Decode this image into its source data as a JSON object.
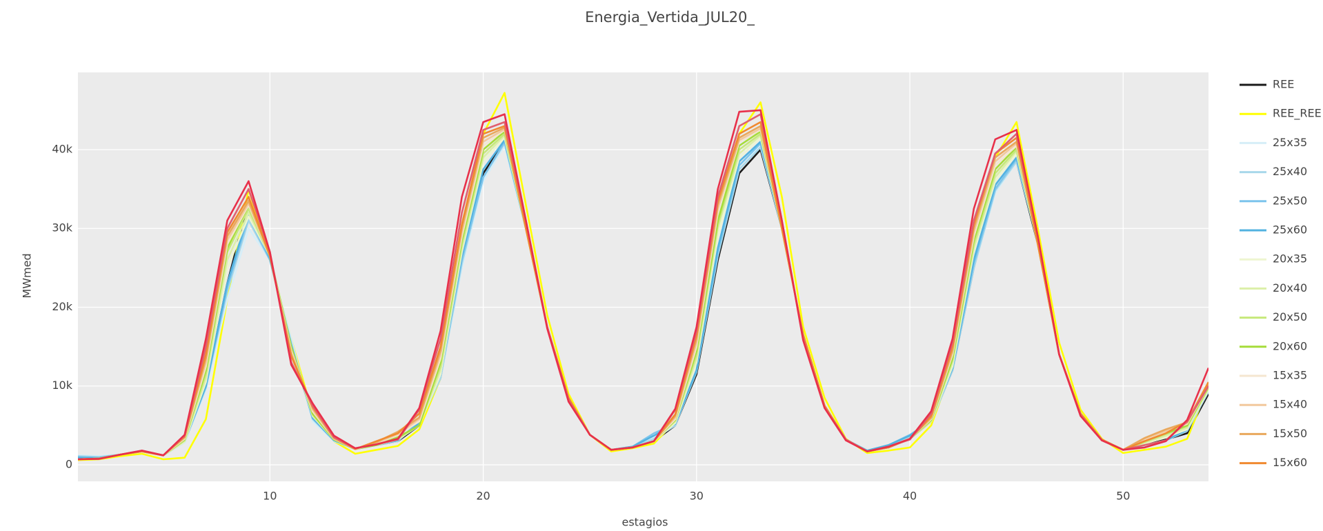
{
  "chart_data": {
    "type": "line",
    "title": "Energia_Vertida_JUL20_",
    "x_label": "estagios",
    "y_label": "MWmed",
    "x": [
      1,
      2,
      3,
      4,
      5,
      6,
      7,
      8,
      9,
      10,
      11,
      12,
      13,
      14,
      15,
      16,
      17,
      18,
      19,
      20,
      21,
      22,
      23,
      24,
      25,
      26,
      27,
      28,
      29,
      30,
      31,
      32,
      33,
      34,
      35,
      36,
      37,
      38,
      39,
      40,
      41,
      42,
      43,
      44,
      45,
      46,
      47,
      48,
      49,
      50,
      51,
      52,
      53,
      54
    ],
    "xlim": [
      1,
      54
    ],
    "xticks": [
      10,
      20,
      30,
      40,
      50
    ],
    "ylim": [
      -2100,
      49800
    ],
    "yticks": [
      0,
      {
        "value": 10000,
        "label": "10k"
      },
      {
        "value": 20000,
        "label": "20k"
      },
      {
        "value": 30000,
        "label": "30k"
      },
      {
        "value": 40000,
        "label": "40k"
      }
    ],
    "grid": true,
    "legend": "right",
    "series": [
      {
        "name": "REE",
        "color": "#1a1a1a",
        "values": [
          700,
          800,
          1300,
          1700,
          1200,
          3000,
          10000,
          23000,
          33500,
          26500,
          15000,
          6000,
          3200,
          2000,
          2500,
          3000,
          5000,
          11000,
          26000,
          37000,
          41000,
          30000,
          17500,
          8500,
          3800,
          1900,
          2200,
          3000,
          5000,
          11500,
          26000,
          37000,
          40000,
          30000,
          16500,
          7500,
          3200,
          1700,
          2200,
          3300,
          5500,
          12000,
          25000,
          35000,
          38500,
          28000,
          14000,
          6500,
          3200,
          1900,
          2500,
          3200,
          4000,
          9000
        ]
      },
      {
        "name": "REE_REE",
        "color": "#ffff00",
        "values": [
          600,
          700,
          1100,
          1400,
          700,
          900,
          5800,
          21000,
          35000,
          26000,
          16000,
          6500,
          3000,
          1400,
          1900,
          2400,
          4500,
          11000,
          28000,
          42000,
          47200,
          33000,
          19000,
          9000,
          3800,
          1700,
          2100,
          2700,
          5500,
          14000,
          32000,
          42000,
          46000,
          34000,
          17500,
          8500,
          3300,
          1500,
          1800,
          2200,
          5000,
          12500,
          30000,
          39000,
          43500,
          30000,
          15500,
          7000,
          3300,
          1500,
          1900,
          2300,
          3300,
          10000
        ]
      },
      {
        "name": "25x35",
        "color": "#d6eef8",
        "values": [
          1200,
          1100,
          1300,
          1700,
          1200,
          2800,
          9500,
          21000,
          30000,
          26000,
          16000,
          5500,
          3000,
          2000,
          2500,
          3000,
          5500,
          11000,
          25000,
          36000,
          40500,
          30000,
          17500,
          8300,
          3800,
          1900,
          2200,
          3500,
          5000,
          12000,
          27000,
          38000,
          40500,
          30000,
          16500,
          7500,
          3200,
          1800,
          2500,
          3800,
          5500,
          12000,
          25000,
          34500,
          38500,
          28500,
          14000,
          6500,
          3200,
          1900,
          2500,
          3000,
          4500,
          9500
        ]
      },
      {
        "name": "25x40",
        "color": "#a8d8ea",
        "values": [
          1100,
          1000,
          1300,
          1700,
          1200,
          2900,
          9800,
          22000,
          31000,
          26000,
          15500,
          5800,
          3100,
          2000,
          2500,
          3100,
          5200,
          11000,
          25500,
          36500,
          40800,
          30000,
          17500,
          8400,
          3800,
          1900,
          2200,
          3300,
          5000,
          11800,
          26500,
          37500,
          40300,
          30000,
          16500,
          7500,
          3200,
          1800,
          2400,
          3600,
          5500,
          12000,
          25000,
          34800,
          38500,
          28300,
          14000,
          6500,
          3200,
          1900,
          2500,
          3100,
          4300,
          9300
        ]
      },
      {
        "name": "25x50",
        "color": "#7cc4ec",
        "values": [
          1000,
          900,
          1300,
          1700,
          1200,
          2900,
          9900,
          22500,
          31500,
          26000,
          15300,
          5900,
          3100,
          2000,
          2500,
          3100,
          5500,
          11500,
          26000,
          36500,
          41000,
          30000,
          17500,
          8400,
          3800,
          1900,
          2300,
          4000,
          5200,
          12000,
          27000,
          38000,
          40800,
          30000,
          16500,
          7500,
          3200,
          1800,
          2500,
          3800,
          5600,
          12200,
          25500,
          35000,
          38800,
          28300,
          14000,
          6500,
          3200,
          1900,
          2500,
          3100,
          4400,
          9500
        ]
      },
      {
        "name": "25x60",
        "color": "#52b2e0",
        "values": [
          900,
          850,
          1300,
          1700,
          1200,
          3000,
          10000,
          23000,
          32000,
          26200,
          15200,
          6000,
          3100,
          2000,
          2500,
          3100,
          5300,
          11500,
          26500,
          37500,
          41200,
          30000,
          17500,
          8400,
          3800,
          1900,
          2300,
          3700,
          5200,
          12000,
          27500,
          38500,
          41000,
          30000,
          16500,
          7500,
          3200,
          1800,
          2500,
          3700,
          5700,
          12300,
          26000,
          35500,
          39000,
          28200,
          14000,
          6500,
          3200,
          1900,
          2500,
          3100,
          4500,
          9500
        ]
      },
      {
        "name": "20x35",
        "color": "#eef5d0",
        "values": [
          700,
          800,
          1300,
          1700,
          1200,
          2900,
          10500,
          25000,
          31500,
          26500,
          15000,
          6200,
          3200,
          2000,
          2500,
          3200,
          5000,
          11500,
          27000,
          38500,
          41500,
          30000,
          17500,
          8500,
          3800,
          1900,
          2200,
          3000,
          5300,
          13000,
          29000,
          39000,
          41500,
          30000,
          16500,
          7500,
          3200,
          1700,
          2200,
          3300,
          5500,
          12500,
          27000,
          36000,
          39500,
          28000,
          14000,
          6500,
          3200,
          1900,
          2700,
          3500,
          4500,
          9500
        ]
      },
      {
        "name": "20x40",
        "color": "#dcefa8",
        "values": [
          700,
          800,
          1300,
          1700,
          1200,
          3000,
          11000,
          26000,
          32000,
          26500,
          15000,
          6300,
          3200,
          2000,
          2500,
          3300,
          5000,
          12000,
          27500,
          39000,
          41800,
          30000,
          17500,
          8500,
          3800,
          1900,
          2200,
          3000,
          5500,
          13500,
          30000,
          39500,
          41800,
          30000,
          16500,
          7500,
          3200,
          1700,
          2200,
          3300,
          5500,
          13000,
          27500,
          36500,
          39800,
          28000,
          14000,
          6500,
          3200,
          1900,
          2800,
          3700,
          4700,
          9700
        ]
      },
      {
        "name": "20x50",
        "color": "#c6e87a",
        "values": [
          700,
          800,
          1300,
          1700,
          1200,
          3100,
          11500,
          27000,
          32500,
          26500,
          15000,
          6400,
          3200,
          2000,
          2500,
          3400,
          5000,
          12500,
          28000,
          39500,
          42000,
          30000,
          17500,
          8500,
          3800,
          1900,
          2200,
          3000,
          5600,
          14000,
          30500,
          40000,
          42000,
          30000,
          16500,
          7500,
          3200,
          1700,
          2200,
          3300,
          5600,
          13300,
          28000,
          37000,
          40000,
          28000,
          14000,
          6500,
          3200,
          1900,
          2900,
          3900,
          4900,
          9800
        ]
      },
      {
        "name": "20x60",
        "color": "#a6dc3a",
        "values": [
          700,
          800,
          1300,
          1700,
          1200,
          3200,
          12000,
          27500,
          33000,
          26500,
          15000,
          6500,
          3200,
          2000,
          2500,
          3500,
          5000,
          13000,
          28500,
          40000,
          42300,
          30000,
          17500,
          8500,
          3800,
          1900,
          2200,
          3000,
          5700,
          14500,
          31000,
          40500,
          42300,
          30000,
          16500,
          7500,
          3200,
          1700,
          2200,
          3300,
          5700,
          13500,
          28500,
          37500,
          40300,
          28000,
          14000,
          6500,
          3200,
          1900,
          3000,
          4000,
          5000,
          9900
        ]
      },
      {
        "name": "15x35",
        "color": "#f5e6d0",
        "values": [
          700,
          800,
          1300,
          1700,
          1200,
          3300,
          12500,
          28000,
          33000,
          26500,
          14500,
          6800,
          3300,
          2000,
          2700,
          3800,
          5500,
          13500,
          29000,
          40500,
          42500,
          30000,
          17500,
          8500,
          3800,
          1900,
          2200,
          3000,
          5800,
          15000,
          32000,
          41000,
          42500,
          30000,
          16500,
          7500,
          3200,
          1700,
          2200,
          3300,
          5800,
          14000,
          29000,
          38000,
          40500,
          28000,
          14000,
          6500,
          3200,
          1900,
          3200,
          4200,
          5200,
          10000
        ]
      },
      {
        "name": "15x40",
        "color": "#f2c89c",
        "values": [
          700,
          800,
          1300,
          1700,
          1200,
          3400,
          13000,
          28500,
          33200,
          26500,
          14300,
          7000,
          3300,
          2000,
          2800,
          3900,
          5800,
          14000,
          29500,
          41000,
          42600,
          30000,
          17500,
          8500,
          3800,
          1900,
          2200,
          3000,
          6000,
          15500,
          32500,
          41200,
          42700,
          30000,
          16500,
          7500,
          3200,
          1700,
          2200,
          3300,
          5900,
          14300,
          29500,
          38500,
          40800,
          28000,
          14000,
          6500,
          3200,
          1900,
          3300,
          4300,
          5300,
          10100
        ]
      },
      {
        "name": "15x50",
        "color": "#e9a85c",
        "values": [
          700,
          800,
          1300,
          1700,
          1200,
          3500,
          13500,
          29000,
          33500,
          26500,
          14000,
          7200,
          3400,
          2000,
          2900,
          4200,
          6000,
          14500,
          30000,
          41500,
          42800,
          30000,
          17500,
          8500,
          3800,
          1900,
          2200,
          3000,
          6200,
          16000,
          33000,
          41500,
          43000,
          30000,
          16500,
          7500,
          3200,
          1700,
          2200,
          3300,
          6000,
          14500,
          30000,
          39000,
          41000,
          28000,
          14000,
          6500,
          3200,
          1900,
          3400,
          4500,
          5400,
          10200
        ]
      },
      {
        "name": "15x60",
        "color": "#f08a30",
        "values": [
          700,
          800,
          1300,
          1700,
          1200,
          3600,
          14000,
          29500,
          34000,
          26500,
          13800,
          7400,
          3500,
          2000,
          3000,
          4000,
          6500,
          15000,
          30500,
          42000,
          43000,
          30000,
          17500,
          8500,
          3800,
          1900,
          2200,
          3000,
          6400,
          16500,
          33500,
          42000,
          43500,
          30000,
          16500,
          7500,
          3200,
          1700,
          2200,
          3300,
          6200,
          15000,
          30500,
          39500,
          41500,
          28000,
          14000,
          6500,
          3200,
          1900,
          3000,
          4000,
          5500,
          10500
        ]
      },
      {
        "color": "#e06070",
        "values": [
          700,
          750,
          1300,
          1800,
          1200,
          3700,
          15000,
          30000,
          35000,
          27000,
          13000,
          7500,
          3500,
          2100,
          2600,
          3200,
          7000,
          16000,
          32000,
          42500,
          43500,
          31000,
          17500,
          8200,
          3800,
          1900,
          2200,
          3000,
          7000,
          17000,
          34000,
          43000,
          44500,
          31000,
          16000,
          7300,
          3200,
          1700,
          2300,
          3200,
          6500,
          15500,
          31000,
          39500,
          42000,
          29000,
          14000,
          6300,
          3100,
          1900,
          2500,
          3100,
          5500,
          10000
        ]
      },
      {
        "color": "#e8304a",
        "values": [
          700,
          750,
          1300,
          1800,
          1200,
          3800,
          16000,
          31000,
          36000,
          27000,
          12700,
          7800,
          3700,
          2100,
          2600,
          3300,
          7200,
          17000,
          34000,
          43500,
          44500,
          31000,
          17300,
          8000,
          3800,
          1900,
          2200,
          3000,
          7100,
          17500,
          35000,
          44800,
          45000,
          31000,
          15800,
          7200,
          3100,
          1700,
          2300,
          3300,
          6800,
          16000,
          32500,
          41300,
          42500,
          29000,
          14000,
          6200,
          3100,
          1900,
          2200,
          3000,
          5700,
          12300
        ]
      }
    ]
  }
}
